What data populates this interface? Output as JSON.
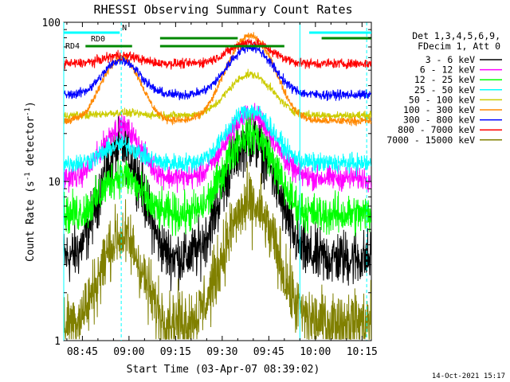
{
  "chart_data": {
    "type": "line",
    "title": "RHESSI Observing Summary Count Rates",
    "xlabel": "Start Time (03-Apr-07 08:39:02)",
    "ylabel_main": "Count Rate (s",
    "ylabel_sup1": "-1",
    "ylabel_mid": " detector",
    "ylabel_sup2": "-1",
    "ylabel_end": ")",
    "y_scale": "log",
    "ylim": [
      1,
      100
    ],
    "xlim_min": [
      39,
      138
    ],
    "x_tick_minutes": [
      45,
      60,
      75,
      90,
      105,
      120,
      135
    ],
    "x_tick_labels": [
      "08:45",
      "09:00",
      "09:15",
      "09:30",
      "09:45",
      "10:00",
      "10:15"
    ],
    "y_tick_labels": [
      {
        "value": 1,
        "label": "1"
      },
      {
        "value": 10,
        "label": "10"
      },
      {
        "value": 100,
        "label": "100"
      }
    ],
    "legend_header": [
      "Det 1,3,4,5,6,9,",
      "FDecim 1, Att 0"
    ],
    "legend_position": "right, outside plot",
    "series": [
      {
        "name": "3 - 6 keV",
        "color": "#000000",
        "baseline": 3.3,
        "peak1": 16,
        "peak2": 18,
        "noise": 0.35
      },
      {
        "name": "6 - 12 keV",
        "color": "#ff00ff",
        "baseline": 10.5,
        "peak1": 22,
        "peak2": 26,
        "noise": 0.15
      },
      {
        "name": "12 - 25 keV",
        "color": "#00ff00",
        "baseline": 6.2,
        "peak1": 11,
        "peak2": 20,
        "noise": 0.25
      },
      {
        "name": "25 - 50 keV",
        "color": "#00ffff",
        "baseline": 13,
        "peak1": 17,
        "peak2": 28,
        "noise": 0.12
      },
      {
        "name": "50 - 100 keV",
        "color": "#cccc00",
        "baseline": 26,
        "peak1": 27,
        "peak2": 47,
        "noise": 0.05
      },
      {
        "name": "100 - 300 keV",
        "color": "#ff8800",
        "baseline": 24,
        "peak1": 60,
        "peak2": 82,
        "noise": 0.05
      },
      {
        "name": "300 - 800 keV",
        "color": "#0000ff",
        "baseline": 35,
        "peak1": 58,
        "peak2": 70,
        "noise": 0.06
      },
      {
        "name": "800 - 7000 keV",
        "color": "#ff0000",
        "baseline": 55,
        "peak1": 62,
        "peak2": 75,
        "noise": 0.06
      },
      {
        "name": "7000 - 15000 keV",
        "color": "#808000",
        "baseline": 1.3,
        "peak1": 4.5,
        "peak2": 7,
        "noise": 0.4
      }
    ],
    "annotations": {
      "N_label": "N",
      "RD0_label": "RD0",
      "RD4_label": "RD4",
      "night_intervals_min": [
        [
          39,
          57
        ],
        [
          118,
          138
        ]
      ],
      "rd0_intervals_min": [
        [
          70,
          95
        ],
        [
          122,
          138
        ]
      ],
      "rd4_intervals_min": [
        [
          46,
          61
        ],
        [
          70,
          110
        ]
      ]
    },
    "vertical_lines_min": [
      {
        "t": 39,
        "style": "solid",
        "color": "#00ffff"
      },
      {
        "t": 57.5,
        "style": "dashed",
        "color": "#00ffff"
      },
      {
        "t": 115,
        "style": "solid",
        "color": "#00ffff"
      },
      {
        "t": 136.5,
        "style": "dashed",
        "color": "#00ffff"
      }
    ]
  },
  "footer": {
    "timestamp": "14-Oct-2021 15:17"
  }
}
